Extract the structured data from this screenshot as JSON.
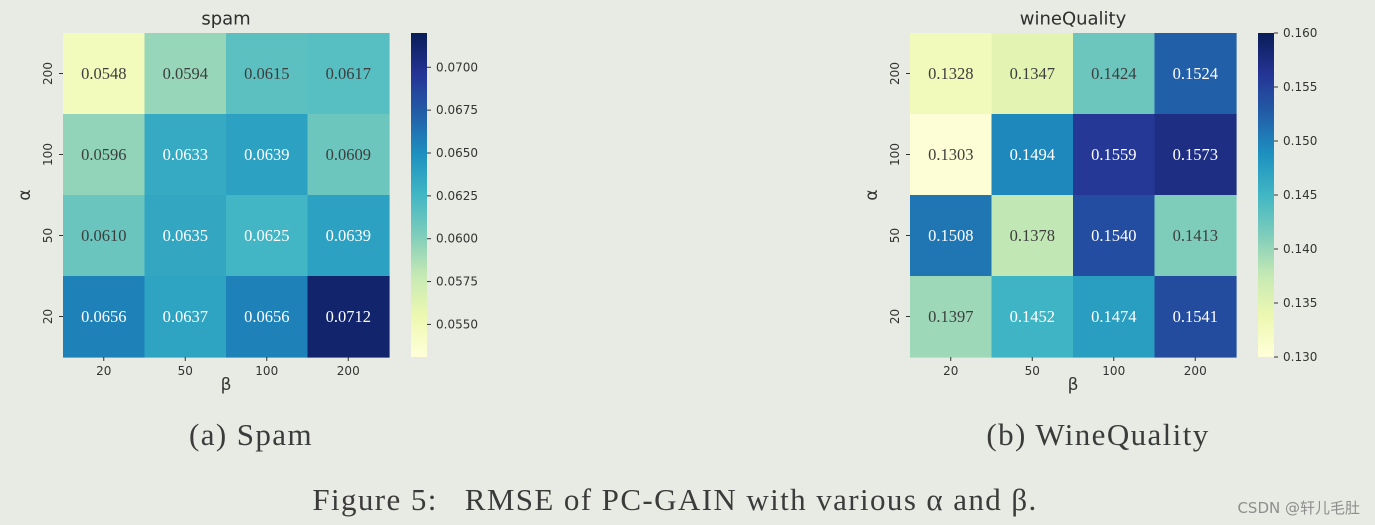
{
  "figure": {
    "subcaptions": [
      "(a) Spam",
      "(b) WineQuality"
    ],
    "caption": {
      "label": "Figure 5:",
      "text": "RMSE of PC-GAIN with various α and β."
    }
  },
  "watermark": "CSDN @轩儿毛肚",
  "colors": {
    "colormap": [
      "#ffffd9",
      "#edf8b1",
      "#c7e9b4",
      "#7fcdbb",
      "#41b6c4",
      "#1d91c0",
      "#225ea8",
      "#253494",
      "#081d58"
    ],
    "annotation_dark": "#3d3d3d",
    "annotation_light": "#ffffff"
  },
  "chart_data": [
    {
      "type": "heatmap",
      "title": "spam",
      "xlabel": "β",
      "ylabel": "α",
      "x": [
        "20",
        "50",
        "100",
        "200"
      ],
      "y": [
        "200",
        "100",
        "50",
        "20"
      ],
      "values": [
        [
          0.0548,
          0.0594,
          0.0615,
          0.0617
        ],
        [
          0.0596,
          0.0633,
          0.0639,
          0.0609
        ],
        [
          0.061,
          0.0635,
          0.0625,
          0.0639
        ],
        [
          0.0656,
          0.0637,
          0.0656,
          0.0712
        ]
      ],
      "colorbar": {
        "range": [
          0.0531,
          0.072
        ],
        "ticks": [
          "0.0550",
          "0.0575",
          "0.0600",
          "0.0625",
          "0.0650",
          "0.0675",
          "0.0700"
        ]
      }
    },
    {
      "type": "heatmap",
      "title": "wineQuality",
      "xlabel": "β",
      "ylabel": "α",
      "x": [
        "20",
        "50",
        "100",
        "200"
      ],
      "y": [
        "200",
        "100",
        "50",
        "20"
      ],
      "values": [
        [
          0.1328,
          0.1347,
          0.1424,
          0.1524
        ],
        [
          0.1303,
          0.1494,
          0.1559,
          0.1573
        ],
        [
          0.1508,
          0.1378,
          0.154,
          0.1413
        ],
        [
          0.1397,
          0.1452,
          0.1474,
          0.1541
        ]
      ],
      "colorbar": {
        "range": [
          0.13,
          0.16
        ],
        "ticks": [
          "0.130",
          "0.135",
          "0.140",
          "0.145",
          "0.150",
          "0.155",
          "0.160"
        ]
      }
    }
  ]
}
